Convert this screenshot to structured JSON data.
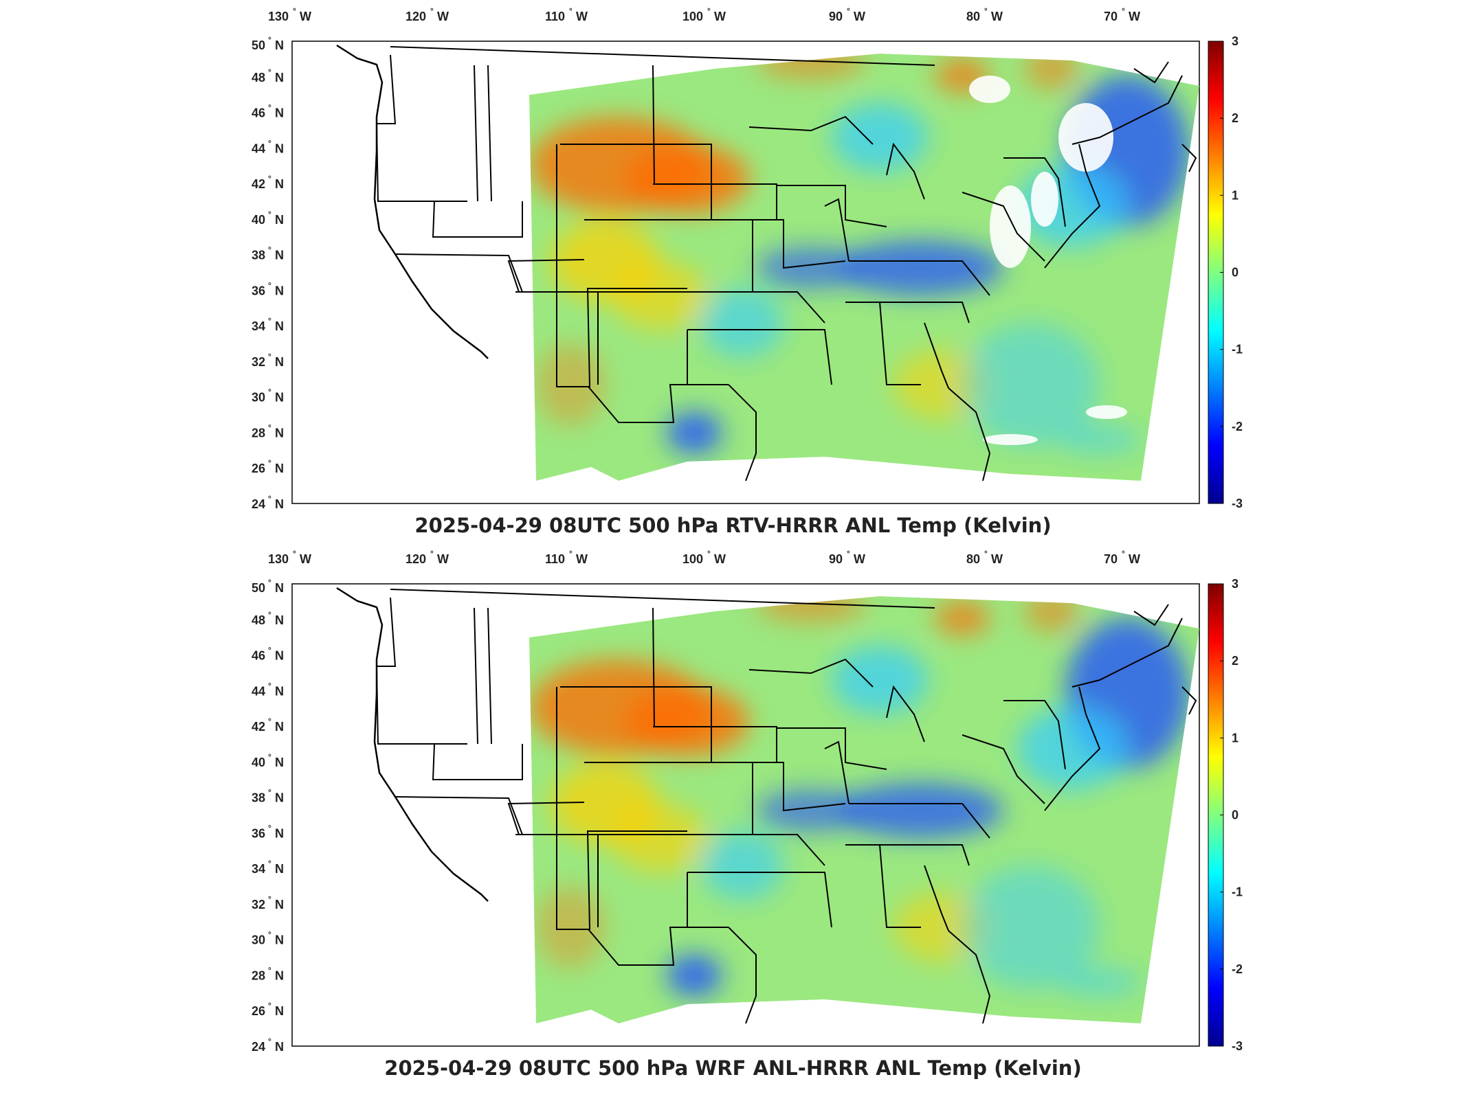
{
  "colorbar": {
    "ticks": [
      "3",
      "2",
      "1",
      "0",
      "-1",
      "-2",
      "-3"
    ],
    "stops": [
      "#00008f",
      "#0000ff",
      "#0080ff",
      "#00ffff",
      "#80ff80",
      "#ffff00",
      "#ff8000",
      "#ff0000",
      "#800000"
    ]
  },
  "axes": {
    "x_ticks": [
      {
        "deg": "130",
        "hemi": "W"
      },
      {
        "deg": "120",
        "hemi": "W"
      },
      {
        "deg": "110",
        "hemi": "W"
      },
      {
        "deg": "100",
        "hemi": "W"
      },
      {
        "deg": "90",
        "hemi": "W"
      },
      {
        "deg": "80",
        "hemi": "W"
      },
      {
        "deg": "70",
        "hemi": "W"
      }
    ],
    "y_ticks": [
      {
        "deg": "50",
        "hemi": "N"
      },
      {
        "deg": "48",
        "hemi": "N"
      },
      {
        "deg": "46",
        "hemi": "N"
      },
      {
        "deg": "44",
        "hemi": "N"
      },
      {
        "deg": "42",
        "hemi": "N"
      },
      {
        "deg": "40",
        "hemi": "N"
      },
      {
        "deg": "38",
        "hemi": "N"
      },
      {
        "deg": "36",
        "hemi": "N"
      },
      {
        "deg": "34",
        "hemi": "N"
      },
      {
        "deg": "32",
        "hemi": "N"
      },
      {
        "deg": "30",
        "hemi": "N"
      },
      {
        "deg": "28",
        "hemi": "N"
      },
      {
        "deg": "26",
        "hemi": "N"
      },
      {
        "deg": "24",
        "hemi": "N"
      }
    ]
  },
  "panels": [
    {
      "title": "2025-04-29 08UTC 500 hPa RTV-HRRR ANL Temp (Kelvin)",
      "has_missing_data_gaps": true
    },
    {
      "title": "2025-04-29 08UTC 500 hPa WRF ANL-HRRR ANL Temp (Kelvin)",
      "has_missing_data_gaps": false
    }
  ],
  "palette": {
    "field_base": "#9be880",
    "warm": "#ffd000",
    "hot": "#ff6a00",
    "cool": "#33ccff",
    "cold": "#1a4cff",
    "missing": "#ffffff",
    "border_line": "#000000"
  }
}
